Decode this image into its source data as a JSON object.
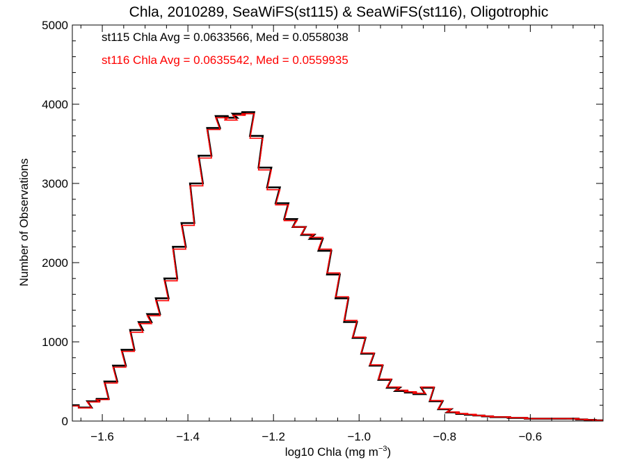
{
  "chart_data": {
    "type": "line",
    "step": true,
    "title": "Chla, 2010289, SeaWiFS(st115) & SeaWiFS(st116), Oligotrophic",
    "xlabel_prefix": "log10 Chla (mg m",
    "xlabel_sup": "−3",
    "xlabel_suffix": ")",
    "ylabel": "Number of Observations",
    "xlim": [
      -1.67,
      -0.43
    ],
    "ylim": [
      0,
      5000
    ],
    "xticks": [
      -1.6,
      -1.4,
      -1.2,
      -1.0,
      -0.8,
      -0.6
    ],
    "xtick_labels": [
      "−1.6",
      "−1.4",
      "−1.2",
      "−1.0",
      "−0.8",
      "−0.6"
    ],
    "yticks": [
      0,
      1000,
      2000,
      3000,
      4000,
      5000
    ],
    "ytick_labels": [
      "0",
      "1000",
      "2000",
      "3000",
      "4000",
      "5000"
    ],
    "grid": false,
    "annotations": [
      {
        "text": "st115 Chla Avg = 0.0633566, Med = 0.0558038",
        "color": "#000000"
      },
      {
        "text": "st116 Chla Avg = 0.0635542, Med = 0.0559935",
        "color": "#ff0000"
      }
    ],
    "series": [
      {
        "color": "#000000",
        "x": [
          -1.67,
          -1.64,
          -1.62,
          -1.6,
          -1.58,
          -1.56,
          -1.54,
          -1.52,
          -1.5,
          -1.48,
          -1.46,
          -1.44,
          -1.42,
          -1.4,
          -1.38,
          -1.36,
          -1.34,
          -1.32,
          -1.3,
          -1.28,
          -1.26,
          -1.24,
          -1.22,
          -1.2,
          -1.18,
          -1.16,
          -1.14,
          -1.12,
          -1.1,
          -1.08,
          -1.06,
          -1.04,
          -1.02,
          -1.0,
          -0.98,
          -0.96,
          -0.94,
          -0.92,
          -0.9,
          -0.88,
          -0.86,
          -0.84,
          -0.82,
          -0.8,
          -0.78,
          -0.76,
          -0.74,
          -0.72,
          -0.7,
          -0.68,
          -0.66,
          -0.64,
          -0.62,
          -0.6,
          -0.58,
          -0.56,
          -0.54,
          -0.52,
          -0.5,
          -0.48,
          -0.46,
          -0.44
        ],
        "values": [
          200,
          170,
          250,
          280,
          500,
          700,
          900,
          1150,
          1250,
          1350,
          1550,
          1800,
          2200,
          2500,
          3000,
          3350,
          3700,
          3850,
          3830,
          3880,
          3900,
          3600,
          3200,
          2950,
          2750,
          2550,
          2450,
          2350,
          2300,
          2150,
          1850,
          1550,
          1250,
          1050,
          850,
          700,
          520,
          420,
          380,
          360,
          340,
          420,
          250,
          150,
          110,
          90,
          80,
          70,
          60,
          50,
          50,
          40,
          40,
          30,
          30,
          30,
          30,
          30,
          30,
          20,
          15,
          10
        ]
      },
      {
        "color": "#ff0000",
        "x": [
          -1.67,
          -1.64,
          -1.62,
          -1.6,
          -1.58,
          -1.56,
          -1.54,
          -1.52,
          -1.5,
          -1.48,
          -1.46,
          -1.44,
          -1.42,
          -1.4,
          -1.38,
          -1.36,
          -1.34,
          -1.32,
          -1.3,
          -1.28,
          -1.26,
          -1.24,
          -1.22,
          -1.2,
          -1.18,
          -1.16,
          -1.14,
          -1.12,
          -1.1,
          -1.08,
          -1.06,
          -1.04,
          -1.02,
          -1.0,
          -0.98,
          -0.96,
          -0.94,
          -0.92,
          -0.9,
          -0.88,
          -0.86,
          -0.84,
          -0.82,
          -0.8,
          -0.78,
          -0.76,
          -0.74,
          -0.72,
          -0.7,
          -0.68,
          -0.66,
          -0.64,
          -0.62,
          -0.6,
          -0.58,
          -0.56,
          -0.54,
          -0.52,
          -0.5,
          -0.48,
          -0.46,
          -0.44
        ],
        "values": [
          190,
          165,
          240,
          270,
          480,
          680,
          880,
          1120,
          1230,
          1330,
          1520,
          1770,
          2170,
          2470,
          2970,
          3320,
          3680,
          3830,
          3800,
          3860,
          3880,
          3570,
          3170,
          2920,
          2730,
          2530,
          2450,
          2360,
          2320,
          2170,
          1870,
          1570,
          1270,
          1060,
          860,
          710,
          530,
          430,
          390,
          370,
          350,
          430,
          260,
          155,
          115,
          95,
          85,
          72,
          62,
          52,
          52,
          42,
          42,
          32,
          32,
          32,
          32,
          32,
          30,
          22,
          15,
          10
        ]
      }
    ]
  }
}
